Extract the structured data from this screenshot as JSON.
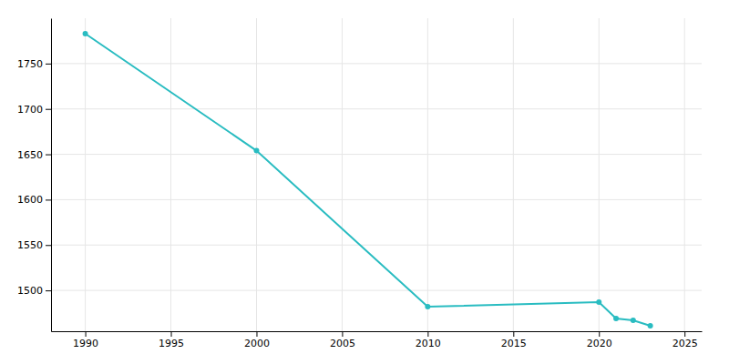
{
  "chart_data": {
    "type": "line",
    "x": [
      1990,
      2000,
      2010,
      2020,
      2021,
      2022,
      2023
    ],
    "values": [
      1783,
      1654,
      1482,
      1487,
      1469,
      1467,
      1461
    ],
    "color": "#29bcc1",
    "marker": "circle",
    "xlim": [
      1988,
      2026
    ],
    "ylim": [
      1455,
      1800
    ],
    "xticks": [
      1990,
      1995,
      2000,
      2005,
      2010,
      2015,
      2020,
      2025
    ],
    "yticks": [
      1500,
      1550,
      1600,
      1650,
      1700,
      1750
    ],
    "grid": true
  }
}
